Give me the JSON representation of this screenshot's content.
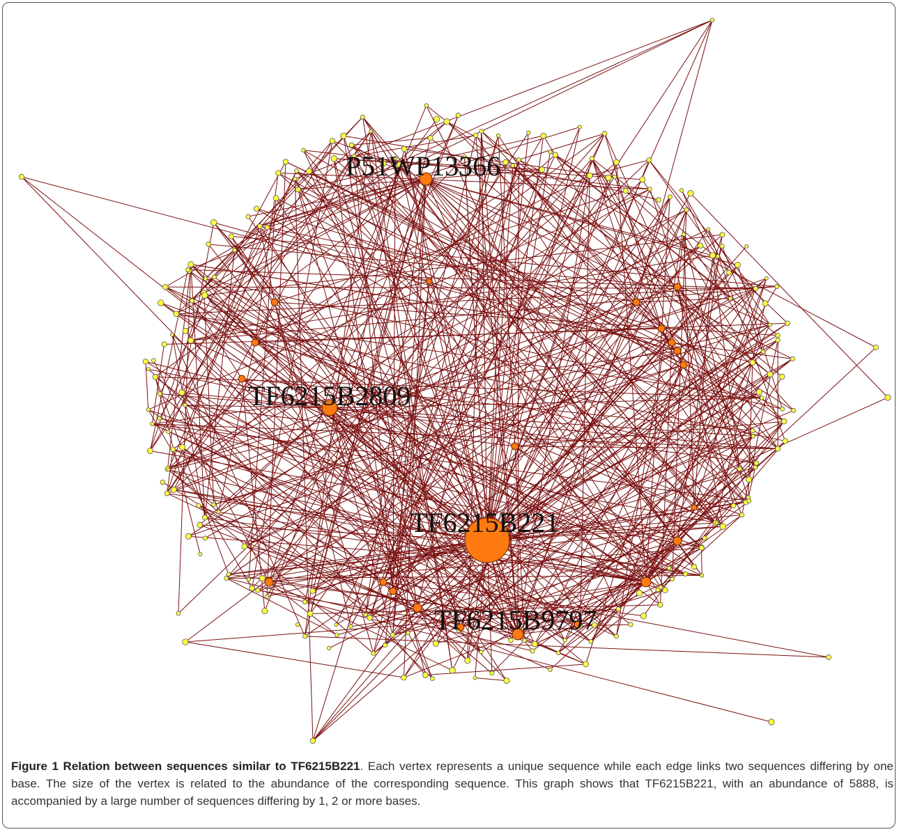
{
  "figure": {
    "labels": [
      "P51WP13366",
      "TF6215B2809",
      "TF6215B221",
      "TF6215B9797"
    ],
    "caption": {
      "title": "Figure 1 Relation between sequences similar to TF6215B221",
      "text": ". Each vertex represents a unique sequence while each edge links two sequences differing by one base. The size of the vertex is related to the abundance of the corresponding sequence. This graph shows that TF6215B221, with an abundance of 5888, is accompanied by a large number of sequences differing by 1, 2 or more bases."
    }
  }
}
